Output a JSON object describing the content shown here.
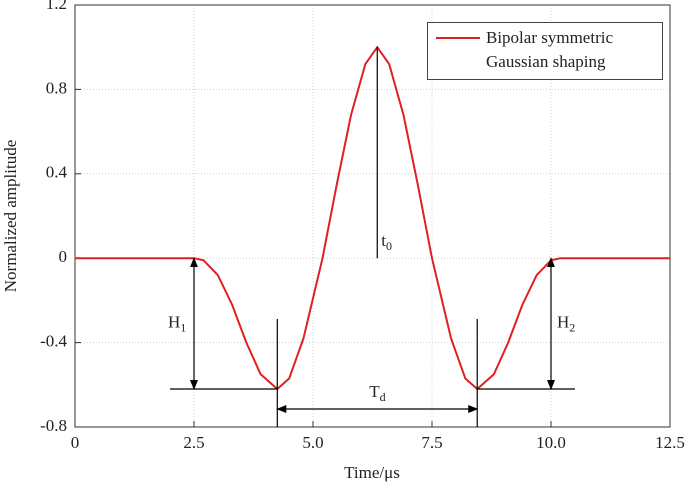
{
  "chart_data": {
    "type": "line",
    "xlabel": "Time/μs",
    "ylabel": "Normalized amplitude",
    "x": [
      0,
      2.5,
      2.7,
      3.0,
      3.3,
      3.6,
      3.9,
      4.25,
      4.5,
      4.8,
      5.2,
      5.5,
      5.8,
      6.1,
      6.35,
      6.6,
      6.9,
      7.2,
      7.5,
      7.9,
      8.2,
      8.45,
      8.8,
      9.1,
      9.4,
      9.7,
      10.0,
      10.2,
      12.5
    ],
    "series": [
      {
        "name": "Bipolar symmetric Gaussian shaping",
        "color": "#e02020",
        "values": [
          0,
          0,
          -0.01,
          -0.08,
          -0.22,
          -0.4,
          -0.55,
          -0.62,
          -0.57,
          -0.38,
          0,
          0.35,
          0.68,
          0.92,
          1.0,
          0.92,
          0.68,
          0.35,
          0,
          -0.38,
          -0.57,
          -0.62,
          -0.55,
          -0.4,
          -0.22,
          -0.08,
          -0.01,
          0,
          0
        ]
      }
    ],
    "xlim": [
      0,
      12.5
    ],
    "ylim": [
      -0.8,
      1.2
    ],
    "xticks": [
      0,
      2.5,
      {
        "value": 5,
        "label": "5.0"
      },
      7.5,
      {
        "value": 10,
        "label": "10.0"
      },
      12.5
    ],
    "yticks": [
      -0.8,
      -0.4,
      0,
      0.4,
      0.8,
      1.2
    ],
    "grid": true,
    "legend": "upper right",
    "annotations": [
      {
        "text": "t",
        "sub": "0"
      },
      {
        "text": "H",
        "sub": "1"
      },
      {
        "text": "H",
        "sub": "2"
      },
      {
        "text": "T",
        "sub": "d"
      }
    ]
  }
}
